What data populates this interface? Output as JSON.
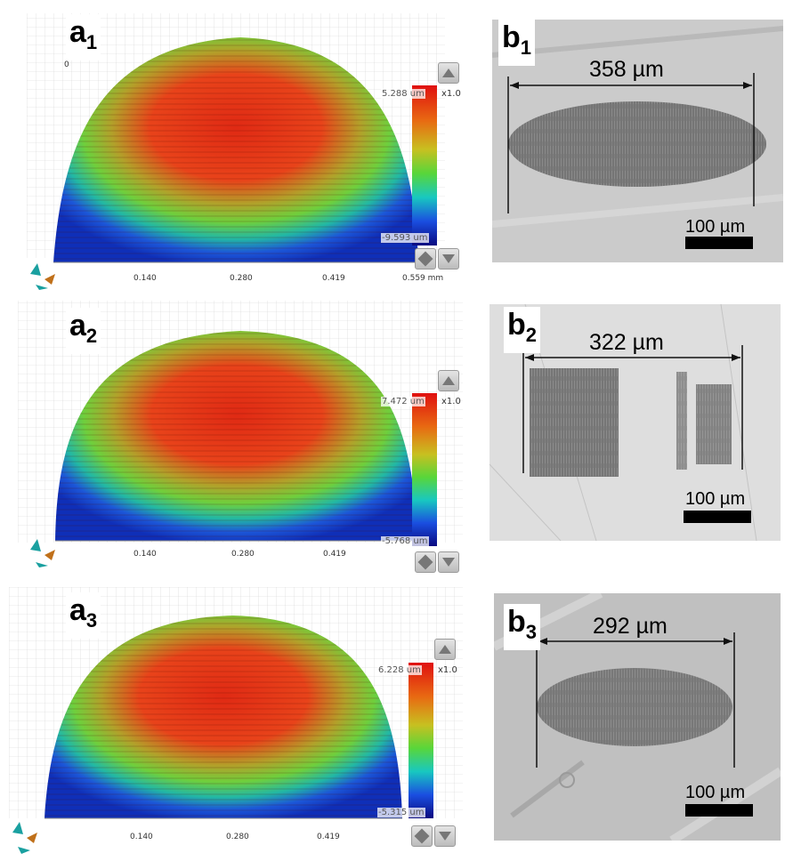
{
  "figure": {
    "a_panels": [
      {
        "label_main": "a",
        "label_sub": "1",
        "scale_max": "5.288 um",
        "scale_min": "-9.593 um",
        "multiplier": "x1.0",
        "ticks": [
          "0.140",
          "0.280",
          "0.419",
          "0.559 mm"
        ],
        "corner_tick": "0"
      },
      {
        "label_main": "a",
        "label_sub": "2",
        "scale_max": "7.472 um",
        "scale_min": "-5.768 um",
        "multiplier": "x1.0",
        "ticks": [
          "0.140",
          "0.280",
          "0.419"
        ]
      },
      {
        "label_main": "a",
        "label_sub": "3",
        "scale_max": "6.228 um",
        "scale_min": "-5.315 um",
        "multiplier": "x1.0",
        "ticks": [
          "0.140",
          "0.280",
          "0.419"
        ]
      }
    ],
    "b_panels": [
      {
        "label_main": "b",
        "label_sub": "1",
        "width_text": "358 µm",
        "scalebar_text": "100 µm"
      },
      {
        "label_main": "b",
        "label_sub": "2",
        "width_text": "322 µm",
        "scalebar_text": "100 µm"
      },
      {
        "label_main": "b",
        "label_sub": "3",
        "width_text": "292 µm",
        "scalebar_text": "100 µm"
      }
    ],
    "colors": {
      "surface_high": "#e8301c",
      "surface_mid": "#7fd13a",
      "surface_low": "#1a3fd6",
      "micro_bg": "#c9c9c9",
      "wear_mark": "#6f6f6f"
    },
    "icons": [
      "up-arrow-icon",
      "down-arrow-icon",
      "reset-view-icon",
      "axis-orientation-icon"
    ]
  }
}
